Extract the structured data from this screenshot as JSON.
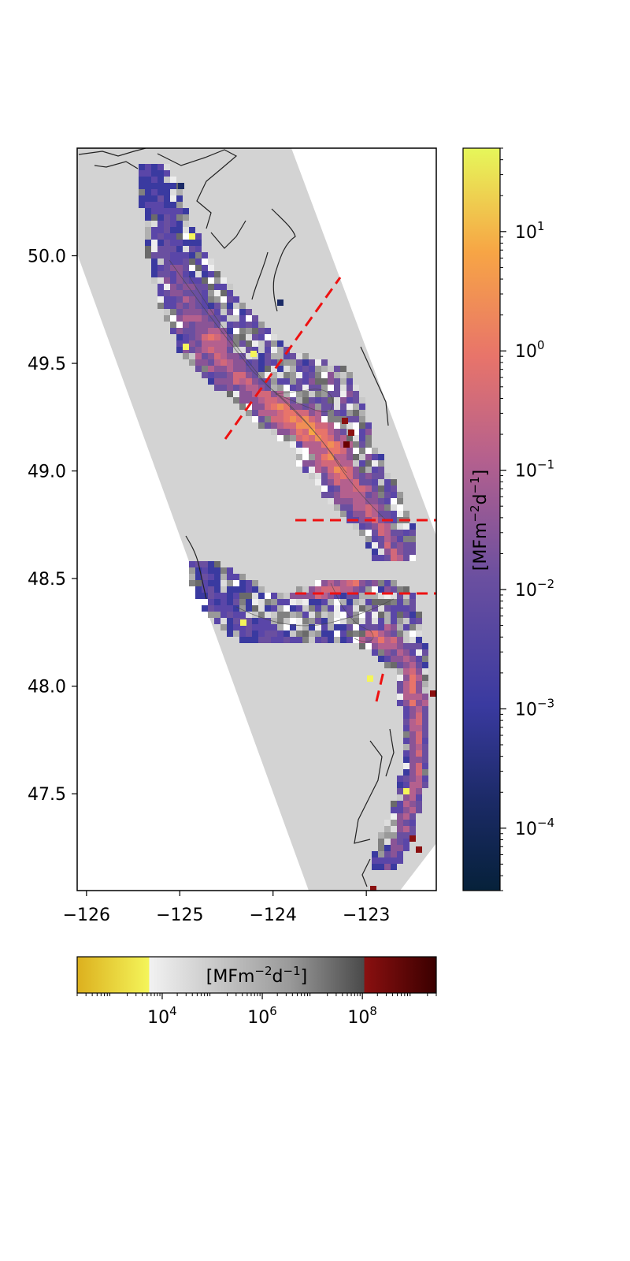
{
  "map": {
    "x_ticks": [
      "−126",
      "−125",
      "−124",
      "−123"
    ],
    "y_ticks": [
      "50.0",
      "49.5",
      "49.0",
      "48.5",
      "48.0",
      "47.5"
    ],
    "lon_range": [
      -126.1,
      -122.25
    ],
    "lat_range": [
      47.05,
      50.5
    ],
    "background_color": "#d3d3d3",
    "coastline_color": "#222222",
    "transect_color": "#ee1111"
  },
  "colorbar_vertical": {
    "label_main": "[MFm",
    "label_sup1": "−2",
    "label_mid": "d",
    "label_sup2": "−1",
    "label_end": "]",
    "scale": "log",
    "range": [
      3e-05,
      50
    ],
    "ticks": [
      {
        "base": "10",
        "exp": "1",
        "value": 10
      },
      {
        "base": "10",
        "exp": "0",
        "value": 1
      },
      {
        "base": "10",
        "exp": "−1",
        "value": 0.1
      },
      {
        "base": "10",
        "exp": "−2",
        "value": 0.01
      },
      {
        "base": "10",
        "exp": "−3",
        "value": 0.001
      },
      {
        "base": "10",
        "exp": "−4",
        "value": 0.0001
      }
    ]
  },
  "colorbar_horizontal": {
    "label_main": "[MFm",
    "label_sup1": "−2",
    "label_mid": "d",
    "label_sup2": "−1",
    "label_end": "]",
    "scale": "log",
    "range": [
      200,
      3000000000
    ],
    "ticks": [
      {
        "base": "10",
        "exp": "4",
        "value": 10000
      },
      {
        "base": "10",
        "exp": "6",
        "value": 1000000
      },
      {
        "base": "10",
        "exp": "8",
        "value": 100000000
      }
    ]
  }
}
